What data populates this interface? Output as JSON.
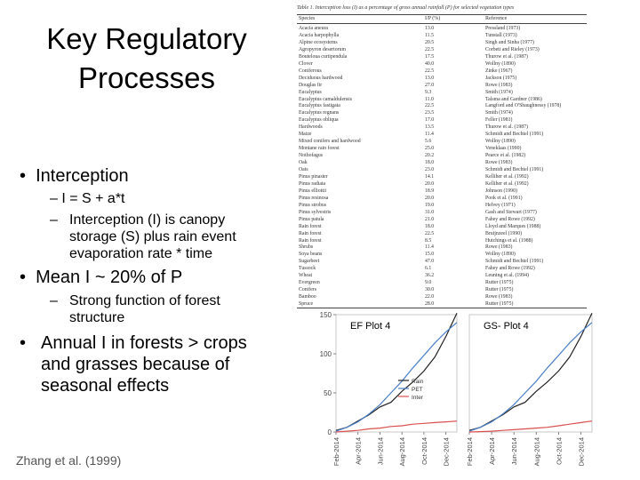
{
  "slide": {
    "title": "Key Regulatory Processes",
    "bullets": [
      {
        "text": "Interception",
        "subs": [
          "I = S + a*t",
          "Interception (I) is canopy storage (S) plus rain event evaporation rate * time"
        ]
      },
      {
        "text": "Mean I ~ 20% of P",
        "subs": [
          "Strong function of forest structure"
        ]
      },
      {
        "text": "Annual I in forests > crops and grasses because of seasonal effects",
        "subs": []
      }
    ],
    "reference": "Zhang et al. (1999)"
  },
  "table": {
    "caption": "Table 1. Interception loss (I) as a percentage of gross annual rainfall (P) for selected vegetation types",
    "headers": [
      "Species",
      "I/P (%)",
      "Reference"
    ],
    "rows": [
      [
        "Acacia aneura",
        "13.0",
        "Pressland (1973)"
      ],
      [
        "Acacia harpophylla",
        "11.5",
        "Tunstall (1973)"
      ],
      [
        "Alpine ecosystems",
        "20.5",
        "Singh and Sinha (1977)"
      ],
      [
        "Agropyron desertorum",
        "22.5",
        "Corbett and Rieley (1973)"
      ],
      [
        "Bouteloua curtipendula",
        "17.5",
        "Thurow et al. (1987)"
      ],
      [
        "Clover",
        "40.0",
        "Wollny (1890)"
      ],
      [
        "Coniferous",
        "22.5",
        "Zinke (1967)"
      ],
      [
        "Deciduous hardwood",
        "13.0",
        "Jackson (1975)"
      ],
      [
        "Douglas fir",
        "27.0",
        "Rowe (1983)"
      ],
      [
        "Eucalyptus",
        "9.3",
        "Smith (1974)"
      ],
      [
        "Eucalyptus camaldulensis",
        "11.0",
        "Talsma and Gardner (1986)"
      ],
      [
        "Eucalyptus fastigata",
        "22.5",
        "Langford and O'Shaughnessy (1978)"
      ],
      [
        "Eucalyptus regnans",
        "23.5",
        "Smith (1974)"
      ],
      [
        "Eucalyptus obliqua",
        "17.0",
        "Feller (1981)"
      ],
      [
        "Hardwoods",
        "13.5",
        "Thurow et al. (1987)"
      ],
      [
        "Maize",
        "11.4",
        "Schmidt and Bechtel (1991)"
      ],
      [
        "Mixed conifers and hardwood",
        "5.6",
        "Wollny (1890)"
      ],
      [
        "Montane rain forest",
        "25.0",
        "Veneklaas (1990)"
      ],
      [
        "Nothofagus",
        "20.2",
        "Pearce et al. (1982)"
      ],
      [
        "Oak",
        "18.0",
        "Rowe (1983)"
      ],
      [
        "Oats",
        "23.0",
        "Schmidt and Bechtel (1991)"
      ],
      [
        "Pinus pinaster",
        "14.1",
        "Kelliher et al. (1992)"
      ],
      [
        "Pinus radiata",
        "20.0",
        "Kelliher et al. (1992)"
      ],
      [
        "Pinus elliottii",
        "18.9",
        "Johnson (1990)"
      ],
      [
        "Pinus resinosa",
        "20.0",
        "Pook et al. (1991)"
      ],
      [
        "Pinus strobus",
        "19.0",
        "Helvey (1971)"
      ],
      [
        "Pinus sylvestris",
        "31.0",
        "Gash and Stewart (1977)"
      ],
      [
        "Pinus patula",
        "21.0",
        "Fahey and Rowe (1992)"
      ],
      [
        "Rain forest",
        "18.0",
        "Lloyd and Marques (1988)"
      ],
      [
        "Rain forest",
        "22.5",
        "Bruijnzeel (1990)"
      ],
      [
        "Rain forest",
        "8.5",
        "Hutchings et al. (1988)"
      ],
      [
        "Shrubs",
        "11.4",
        "Rowe (1983)"
      ],
      [
        "Soya beans",
        "15.0",
        "Wollny (1890)"
      ],
      [
        "Sugarbeet",
        "47.0",
        "Schmidt and Bechtel (1991)"
      ],
      [
        "Tussock",
        "6.1",
        "Fahey and Rowe (1992)"
      ],
      [
        "Wheat",
        "36.2",
        "Leuning et al. (1994)"
      ],
      [
        "Evergreen",
        "9.0",
        "Rutter (1975)"
      ],
      [
        "Conifers",
        "30.0",
        "Rutter (1975)"
      ],
      [
        "Bamboo",
        "22.0",
        "Rowe (1983)"
      ],
      [
        "Spruce",
        "28.0",
        "Rutter (1975)"
      ]
    ]
  },
  "chart_data": [
    {
      "type": "line",
      "title": "EF Plot 4",
      "x_ticks": [
        "Feb-2014",
        "Apr-2014",
        "Jun-2014",
        "Aug-2014",
        "Oct-2014",
        "Dec-2014"
      ],
      "ylim": [
        0,
        150
      ],
      "y_ticks": [
        0,
        50,
        100,
        150
      ],
      "legend": {
        "placement": "center-right",
        "entries": [
          "Rain",
          "PET",
          "Inter"
        ]
      },
      "series": [
        {
          "name": "Rain",
          "color": "#222222",
          "x": [
            0,
            1,
            2,
            3,
            4,
            5,
            6,
            7,
            8,
            9,
            10,
            11
          ],
          "values": [
            2,
            6,
            14,
            22,
            32,
            38,
            52,
            64,
            78,
            96,
            122,
            152
          ]
        },
        {
          "name": "PET",
          "color": "#4a7fc8",
          "x": [
            0,
            1,
            2,
            3,
            4,
            5,
            6,
            7,
            8,
            9,
            10,
            11
          ],
          "values": [
            1,
            6,
            13,
            23,
            35,
            50,
            65,
            82,
            98,
            114,
            128,
            140
          ]
        },
        {
          "name": "Inter",
          "color": "#d94f4f",
          "x": [
            0,
            1,
            2,
            3,
            4,
            5,
            6,
            7,
            8,
            9,
            10,
            11
          ],
          "values": [
            0,
            1,
            2,
            4,
            5,
            7,
            8,
            10,
            11,
            12,
            13,
            14
          ]
        }
      ]
    },
    {
      "type": "line",
      "title": "GS- Plot 4",
      "x_ticks": [
        "Feb-2014",
        "Apr-2014",
        "Jun-2014",
        "Aug-2014",
        "Oct-2014",
        "Dec-2014"
      ],
      "ylim": [
        0,
        150
      ],
      "series": [
        {
          "name": "Rain",
          "color": "#222222",
          "x": [
            0,
            1,
            2,
            3,
            4,
            5,
            6,
            7,
            8,
            9,
            10,
            11
          ],
          "values": [
            2,
            6,
            14,
            22,
            32,
            38,
            52,
            64,
            78,
            96,
            122,
            152
          ]
        },
        {
          "name": "PET",
          "color": "#4a7fc8",
          "x": [
            0,
            1,
            2,
            3,
            4,
            5,
            6,
            7,
            8,
            9,
            10,
            11
          ],
          "values": [
            1,
            6,
            13,
            23,
            35,
            50,
            65,
            82,
            98,
            114,
            128,
            140
          ]
        },
        {
          "name": "Inter",
          "color": "#d94f4f",
          "x": [
            0,
            1,
            2,
            3,
            4,
            5,
            6,
            7,
            8,
            9,
            10,
            11
          ],
          "values": [
            0,
            0.5,
            1,
            2,
            3,
            4,
            5,
            6,
            8,
            10,
            12,
            14
          ]
        }
      ]
    }
  ],
  "colors": {
    "text": "#000000",
    "subtext": "#555555"
  }
}
